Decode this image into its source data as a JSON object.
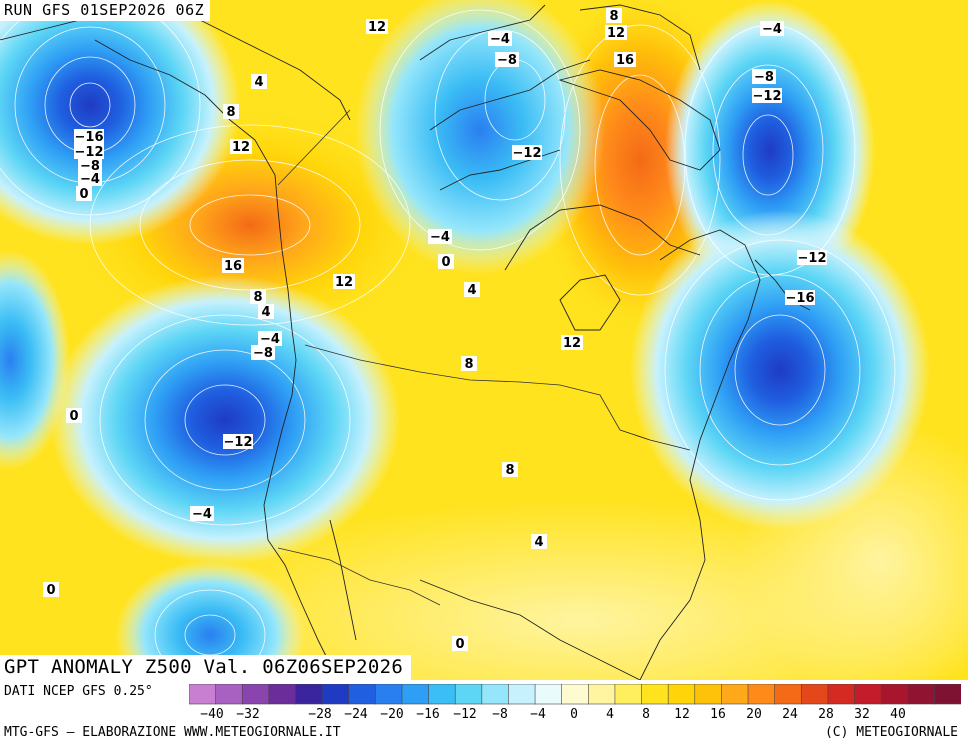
{
  "header": {
    "run_label": "RUN GFS 01SEP2026 06Z"
  },
  "title": "GPT ANOMALY Z500 Val. 06Z06SEP2026",
  "footer": {
    "data_source": "DATI NCEP GFS 0.25°",
    "credits_left": "MTG-GFS – ELABORAZIONE WWW.METEOGIORNALE.IT",
    "credits_right": "(C) METEOGIORNALE"
  },
  "legend": {
    "tick_labels": [
      "−40",
      "−32",
      "−28",
      "−24",
      "−20",
      "−16",
      "−12",
      "−8",
      "−4",
      "0",
      "4",
      "8",
      "12",
      "16",
      "20",
      "24",
      "28",
      "32",
      "40"
    ],
    "colors": [
      "#c87fd2",
      "#a861c0",
      "#8a44ad",
      "#6a2d9a",
      "#3a259f",
      "#1f3bc3",
      "#1f5fe0",
      "#2a7ff0",
      "#2f9ff5",
      "#3bbdf5",
      "#5dd6f5",
      "#95e6fb",
      "#c6f1fd",
      "#eafbfb",
      "#fffbd0",
      "#fff4a0",
      "#ffee5e",
      "#ffe31f",
      "#ffd50a",
      "#ffc20a",
      "#ffa81a",
      "#ff8a1a",
      "#f46a16",
      "#e4481a",
      "#d42a22",
      "#c41c2a",
      "#a8162e",
      "#901432",
      "#7d1232"
    ]
  },
  "contour_labels": [
    {
      "text": "12",
      "kind": "pos"
    },
    {
      "text": "4",
      "kind": "pos"
    },
    {
      "text": "8",
      "kind": "pos"
    },
    {
      "text": "12",
      "kind": "pos"
    },
    {
      "text": "16",
      "kind": "pos"
    },
    {
      "text": "8",
      "kind": "pos"
    },
    {
      "text": "4",
      "kind": "pos"
    },
    {
      "text": "12",
      "kind": "pos"
    },
    {
      "text": "4",
      "kind": "pos"
    },
    {
      "text": "8",
      "kind": "pos"
    },
    {
      "text": "12",
      "kind": "pos"
    },
    {
      "text": "8",
      "kind": "pos"
    },
    {
      "text": "4",
      "kind": "pos"
    },
    {
      "text": "8",
      "kind": "pos"
    },
    {
      "text": "12",
      "kind": "pos"
    },
    {
      "text": "16",
      "kind": "pos"
    },
    {
      "text": "0",
      "kind": "zero"
    },
    {
      "text": "0",
      "kind": "zero"
    },
    {
      "text": "0",
      "kind": "zero"
    },
    {
      "text": "0",
      "kind": "zero"
    },
    {
      "text": "0",
      "kind": "zero"
    },
    {
      "text": "−16",
      "kind": "neg"
    },
    {
      "text": "−12",
      "kind": "neg"
    },
    {
      "text": "−8",
      "kind": "neg"
    },
    {
      "text": "−4",
      "kind": "neg"
    },
    {
      "text": "−4",
      "kind": "neg"
    },
    {
      "text": "−8",
      "kind": "neg"
    },
    {
      "text": "−12",
      "kind": "neg"
    },
    {
      "text": "−4",
      "kind": "neg"
    },
    {
      "text": "−4",
      "kind": "neg"
    },
    {
      "text": "−8",
      "kind": "neg"
    },
    {
      "text": "−12",
      "kind": "neg"
    },
    {
      "text": "−4",
      "kind": "neg"
    },
    {
      "text": "−4",
      "kind": "neg"
    },
    {
      "text": "−8",
      "kind": "neg"
    },
    {
      "text": "−12",
      "kind": "neg"
    },
    {
      "text": "−12",
      "kind": "neg"
    },
    {
      "text": "−16",
      "kind": "neg"
    }
  ]
}
